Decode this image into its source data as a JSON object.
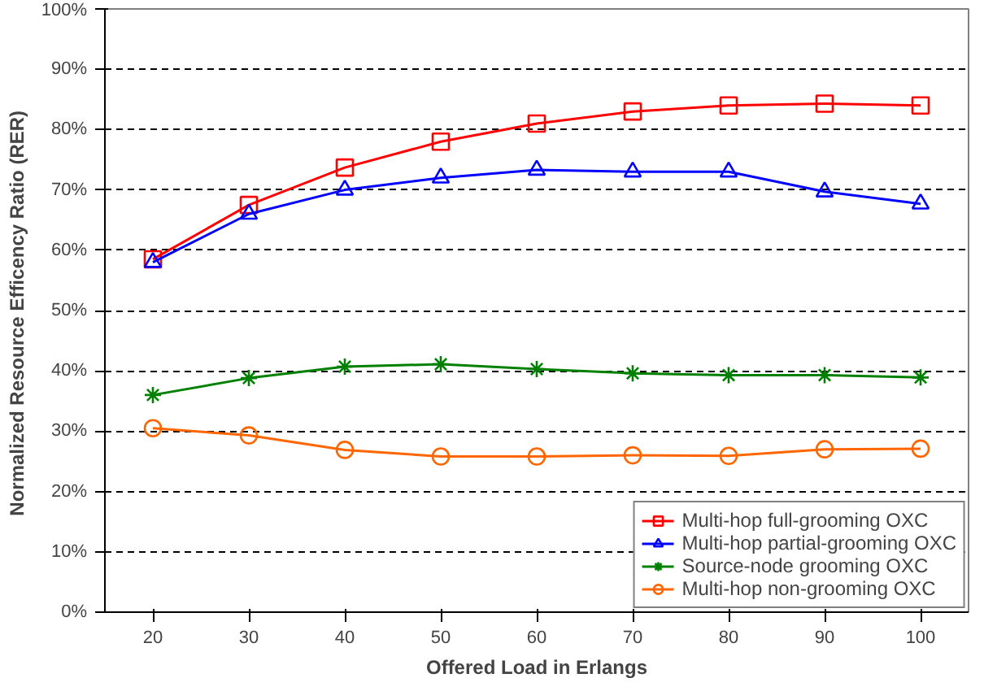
{
  "chart_data": {
    "type": "line",
    "xlabel": "Offered Load in Erlangs",
    "ylabel": "Normalized Resource Efficency Ratio  (RER)",
    "categories": [
      "20",
      "30",
      "40",
      "50",
      "60",
      "70",
      "80",
      "90",
      "100"
    ],
    "ylim": [
      0,
      100
    ],
    "yticks": [
      {
        "value": 0,
        "label": "0%"
      },
      {
        "value": 10,
        "label": "10%"
      },
      {
        "value": 20,
        "label": "20%"
      },
      {
        "value": 30,
        "label": "30%"
      },
      {
        "value": 40,
        "label": "40%"
      },
      {
        "value": 50,
        "label": "50%"
      },
      {
        "value": 60,
        "label": "60%"
      },
      {
        "value": 70,
        "label": "70%"
      },
      {
        "value": 80,
        "label": "80%"
      },
      {
        "value": 90,
        "label": "90%"
      },
      {
        "value": 100,
        "label": "100%"
      }
    ],
    "grid": "y",
    "legend": "bottom right",
    "line_style": "solid",
    "series": [
      {
        "name": "Multi-hop full-grooming OXC",
        "color": "#ff0000",
        "marker": "square",
        "values": [
          58.5,
          67.5,
          73.7,
          78,
          81,
          83,
          84,
          84.3,
          84
        ]
      },
      {
        "name": "Multi-hop partial-grooming OXC",
        "color": "#0000ff",
        "marker": "triangle",
        "values": [
          58,
          66,
          70,
          72,
          73.3,
          73,
          73,
          69.7,
          67.7
        ]
      },
      {
        "name": "Source-node grooming OXC",
        "color": "#008000",
        "marker": "cross",
        "values": [
          36,
          38.8,
          40.7,
          41.1,
          40.3,
          39.6,
          39.3,
          39.3,
          38.9
        ]
      },
      {
        "name": "Multi-hop non-grooming OXC",
        "color": "#ff6600",
        "marker": "circle",
        "values": [
          30.5,
          29.3,
          26.9,
          25.8,
          25.8,
          26,
          25.9,
          27,
          27.1
        ]
      }
    ]
  }
}
